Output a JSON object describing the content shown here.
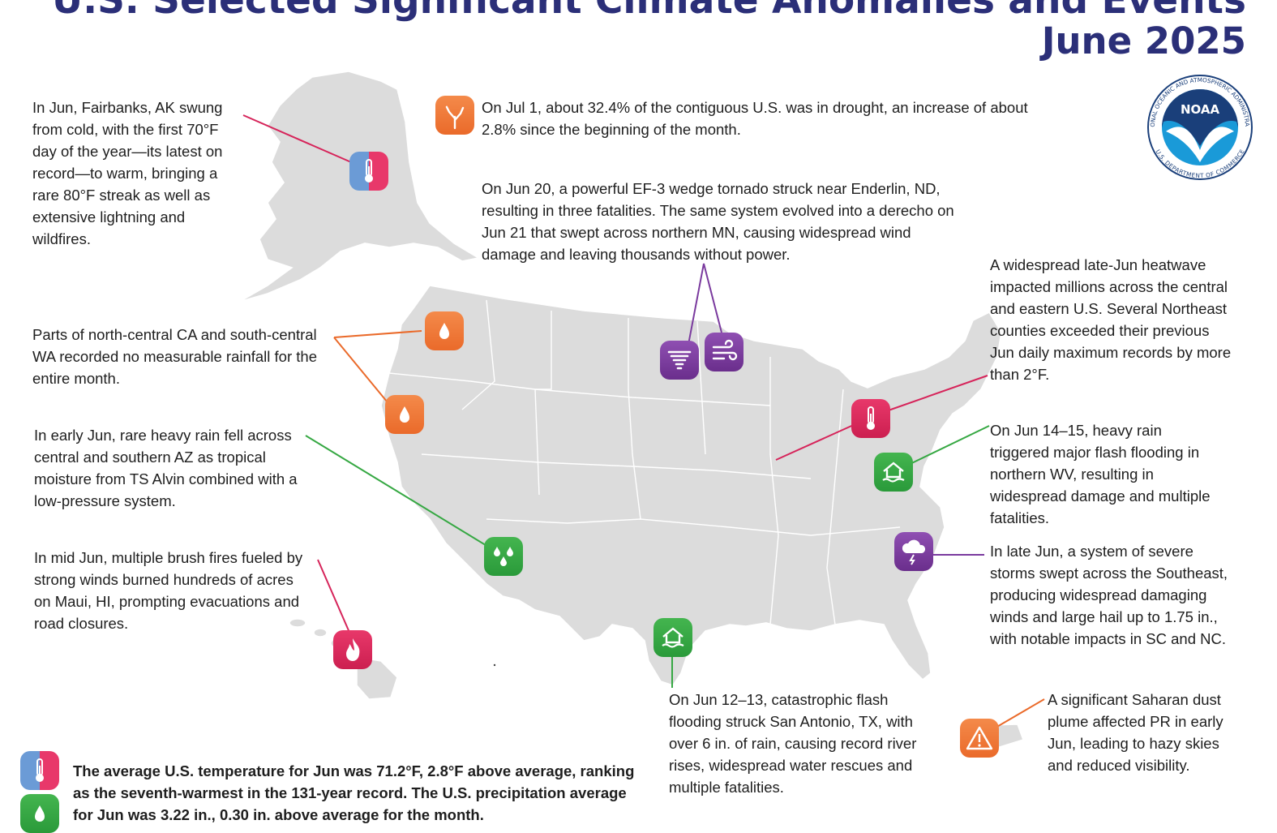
{
  "title": {
    "line1": "U.S. Selected Significant Climate Anomalies and Events",
    "line2": "June 2025"
  },
  "logo": {
    "text": "NOAA",
    "ring_top": "NATIONAL OCEANIC AND ATMOSPHERIC ADMINISTRATION",
    "ring_bottom": "U.S. DEPARTMENT OF COMMERCE",
    "color": "#1a9ad8"
  },
  "events": {
    "alaska": "In Jun, Fairbanks, AK swung from cold, with the first 70°F day of the year—its latest on record—to warm, bringing a rare 80°F streak as well as extensive lightning and wildfires.",
    "drought": "On Jul 1, about 32.4% of the contiguous U.S. was in drought, an increase of about 2.8% since the beginning of the month.",
    "tornado": "On Jun 20, a powerful EF-3 wedge tornado struck near Enderlin, ND, resulting in three fatalities. The same system evolved into a derecho on Jun 21 that swept across northern MN, causing widespread wind damage and leaving thousands without power.",
    "heatwave": "A widespread late-Jun heatwave impacted millions across the central and eastern U.S. Several Northeast counties exceeded their previous Jun daily maximum records by more than 2°F.",
    "dry": "Parts of north-central CA and south-central WA recorded no measurable rainfall for the entire month.",
    "az_rain": "In early Jun, rare heavy rain fell across central and southern AZ as tropical moisture from TS Alvin combined with a low-pressure system.",
    "wv_flood": "On Jun 14–15, heavy rain triggered major flash flooding in northern WV, resulting in widespread damage and multiple fatalities.",
    "maui": "In mid Jun, multiple brush fires fueled by strong winds burned hundreds of acres on Maui, HI, prompting evacuations and road closures.",
    "se_storms": "In late Jun, a system of severe storms swept across the Southeast, producing widespread damaging winds and large hail up to 1.75 in., with notable impacts in SC and NC.",
    "tx_flood": "On Jun 12–13, catastrophic flash flooding struck San Antonio, TX, with over 6 in. of rain, causing record river rises, widespread water rescues and multiple fatalities.",
    "pr_dust": "A significant Saharan dust plume affected PR in early Jun, leading to hazy skies and reduced visibility."
  },
  "summary": {
    "temperature": "The average U.S. temperature for Jun was 71.2°F, 2.8°F above average, ranking as the seventh-warmest in the 131-year record. The U.S. precipitation average for Jun was 3.22 in., 0.30 in. above average for the month."
  },
  "colors": {
    "title": "#2b2f78",
    "map": "#dcdcdc",
    "orange": "#ea6a2a",
    "purple": "#7a3a9e",
    "green": "#36a843",
    "pink": "#d6245a",
    "blue": "#6b9bd6"
  },
  "icons": {
    "drought": "drought-icon",
    "alaska": "thermometer-icon",
    "dry1": "raindrop-icon",
    "dry2": "raindrop-icon",
    "tornado": "tornado-icon",
    "wind": "wind-icon",
    "heat": "thermometer-icon",
    "wv": "flood-house-icon",
    "az": "raindrops-icon",
    "maui": "fire-icon",
    "se": "storm-cloud-icon",
    "tx": "flood-house-icon",
    "pr": "warning-icon"
  }
}
